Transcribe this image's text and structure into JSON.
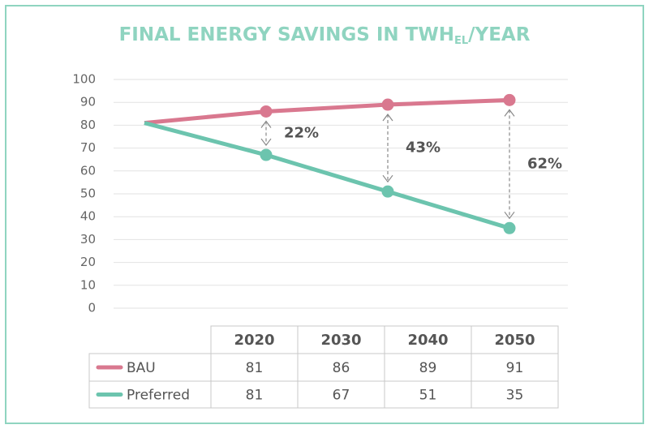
{
  "chart_data": {
    "type": "line",
    "title": [
      "FINAL ENERGY SAVINGS IN TWH",
      "EL",
      "/YEAR"
    ],
    "categories": [
      "2020",
      "2030",
      "2040",
      "2050"
    ],
    "series": [
      {
        "name": "BAU",
        "color": "#d9788f",
        "values": [
          81,
          86,
          89,
          91
        ]
      },
      {
        "name": "Preferred",
        "color": "#6cc4ae",
        "values": [
          81,
          67,
          51,
          35
        ]
      }
    ],
    "annotations": [
      null,
      "22%",
      "43%",
      "62%"
    ],
    "show_first_marker": false,
    "ylim": [
      0,
      100
    ],
    "yticks": [
      0,
      10,
      20,
      30,
      40,
      50,
      60,
      70,
      80,
      90,
      100
    ],
    "grid": true
  }
}
